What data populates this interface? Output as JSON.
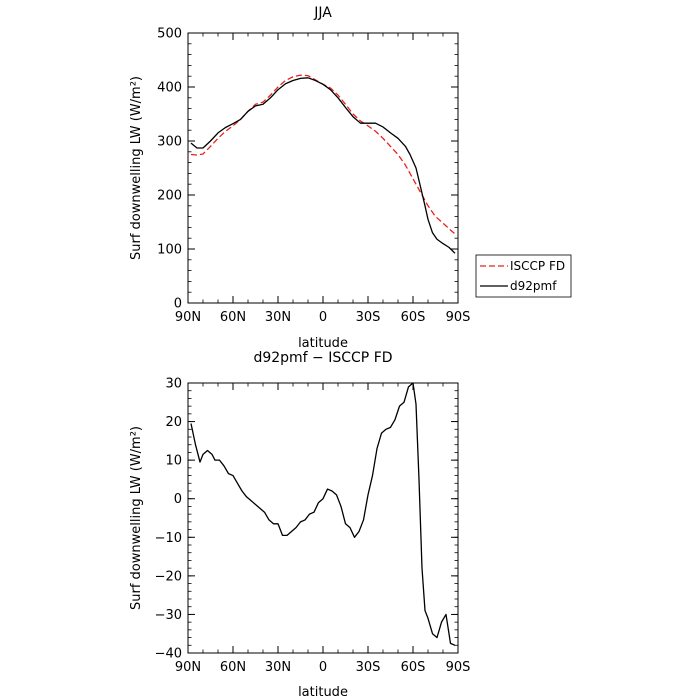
{
  "chart_data": [
    {
      "type": "line",
      "title": "JJA",
      "xlabel": "latitude",
      "ylabel": "Surf downwelling LW (W/m²)",
      "xlim": [
        90,
        -90
      ],
      "ylim": [
        0,
        500
      ],
      "x_tick_values": [
        90,
        60,
        30,
        0,
        -30,
        -60,
        -90
      ],
      "x_tick_labels": [
        "90N",
        "60N",
        "30N",
        "0",
        "30S",
        "60S",
        "90S"
      ],
      "y_tick_values": [
        0,
        100,
        200,
        300,
        400,
        500
      ],
      "y_tick_labels": [
        "0",
        "100",
        "200",
        "300",
        "400",
        "500"
      ],
      "grid": false,
      "legend_placement": "right, outside",
      "series": [
        {
          "name": "ISCCP FD",
          "color": "#e8211b",
          "dash": "dashed",
          "x": [
            88,
            84,
            80,
            75,
            70,
            65,
            60,
            55,
            50,
            45,
            40,
            35,
            30,
            25,
            20,
            15,
            10,
            5,
            0,
            -5,
            -10,
            -15,
            -20,
            -25,
            -30,
            -35,
            -40,
            -45,
            -50,
            -55,
            -60,
            -65,
            -70,
            -75,
            -80,
            -85,
            -88
          ],
          "y": [
            275,
            274,
            276,
            290,
            305,
            318,
            328,
            340,
            355,
            368,
            372,
            385,
            400,
            412,
            419,
            422,
            421,
            413,
            405,
            398,
            385,
            368,
            350,
            337,
            328,
            318,
            305,
            290,
            275,
            255,
            230,
            205,
            180,
            160,
            148,
            135,
            128
          ]
        },
        {
          "name": "d92pmf",
          "color": "#000000",
          "dash": "solid",
          "x": [
            88,
            84,
            80,
            75,
            70,
            65,
            60,
            55,
            50,
            45,
            40,
            35,
            30,
            25,
            20,
            15,
            10,
            5,
            0,
            -5,
            -10,
            -15,
            -20,
            -25,
            -30,
            -35,
            -40,
            -45,
            -50,
            -55,
            -58,
            -62,
            -65,
            -68,
            -70,
            -73,
            -76,
            -80,
            -84,
            -88
          ],
          "y": [
            296,
            287,
            287,
            300,
            315,
            325,
            332,
            340,
            355,
            365,
            368,
            380,
            395,
            406,
            412,
            416,
            417,
            412,
            405,
            395,
            380,
            362,
            345,
            333,
            333,
            333,
            326,
            315,
            305,
            290,
            275,
            250,
            215,
            180,
            155,
            130,
            118,
            110,
            103,
            92
          ]
        }
      ]
    },
    {
      "type": "line",
      "title": "d92pmf − ISCCP FD",
      "xlabel": "latitude",
      "ylabel": "Surf downwelling LW (W/m²)",
      "xlim": [
        90,
        -90
      ],
      "ylim": [
        -40,
        30
      ],
      "x_tick_values": [
        90,
        60,
        30,
        0,
        -30,
        -60,
        -90
      ],
      "x_tick_labels": [
        "90N",
        "60N",
        "30N",
        "0",
        "30S",
        "60S",
        "90S"
      ],
      "y_tick_values": [
        -40,
        -30,
        -20,
        -10,
        0,
        10,
        20,
        30
      ],
      "y_tick_labels": [
        "−40",
        "−30",
        "−20",
        "−10",
        "0",
        "10",
        "20",
        "30"
      ],
      "grid": false,
      "series": [
        {
          "color": "#000000",
          "dash": "solid",
          "x": [
            88,
            85,
            82,
            80,
            77,
            74,
            72,
            69,
            66,
            63,
            60,
            57,
            54,
            51,
            48,
            45,
            42,
            39,
            36,
            33,
            30,
            27,
            24,
            21,
            18,
            15,
            12,
            9,
            6,
            3,
            0,
            -3,
            -6,
            -9,
            -12,
            -15,
            -18,
            -21,
            -24,
            -27,
            -30,
            -33,
            -36,
            -39,
            -42,
            -45,
            -48,
            -51,
            -54,
            -57,
            -60,
            -62,
            -64,
            -66,
            -68,
            -70,
            -73,
            -76,
            -79,
            -82,
            -85,
            -88
          ],
          "y": [
            19.5,
            14,
            9.5,
            11.5,
            12.5,
            11.5,
            10,
            10,
            8.5,
            6.5,
            6,
            4,
            2,
            0.5,
            -0.5,
            -1.5,
            -2.5,
            -3.5,
            -5.5,
            -6.5,
            -6.5,
            -9.5,
            -9.5,
            -8.5,
            -7.5,
            -6,
            -5.5,
            -4,
            -3.5,
            -1,
            0,
            2.5,
            2,
            1,
            -2,
            -6.5,
            -7.5,
            -10,
            -8.5,
            -5.5,
            1,
            6,
            13,
            17,
            18,
            18.5,
            20.5,
            24,
            25,
            29,
            30,
            24.5,
            5,
            -18,
            -29,
            -31,
            -35,
            -36,
            -32,
            -30,
            -37.5,
            -38
          ]
        }
      ]
    }
  ]
}
